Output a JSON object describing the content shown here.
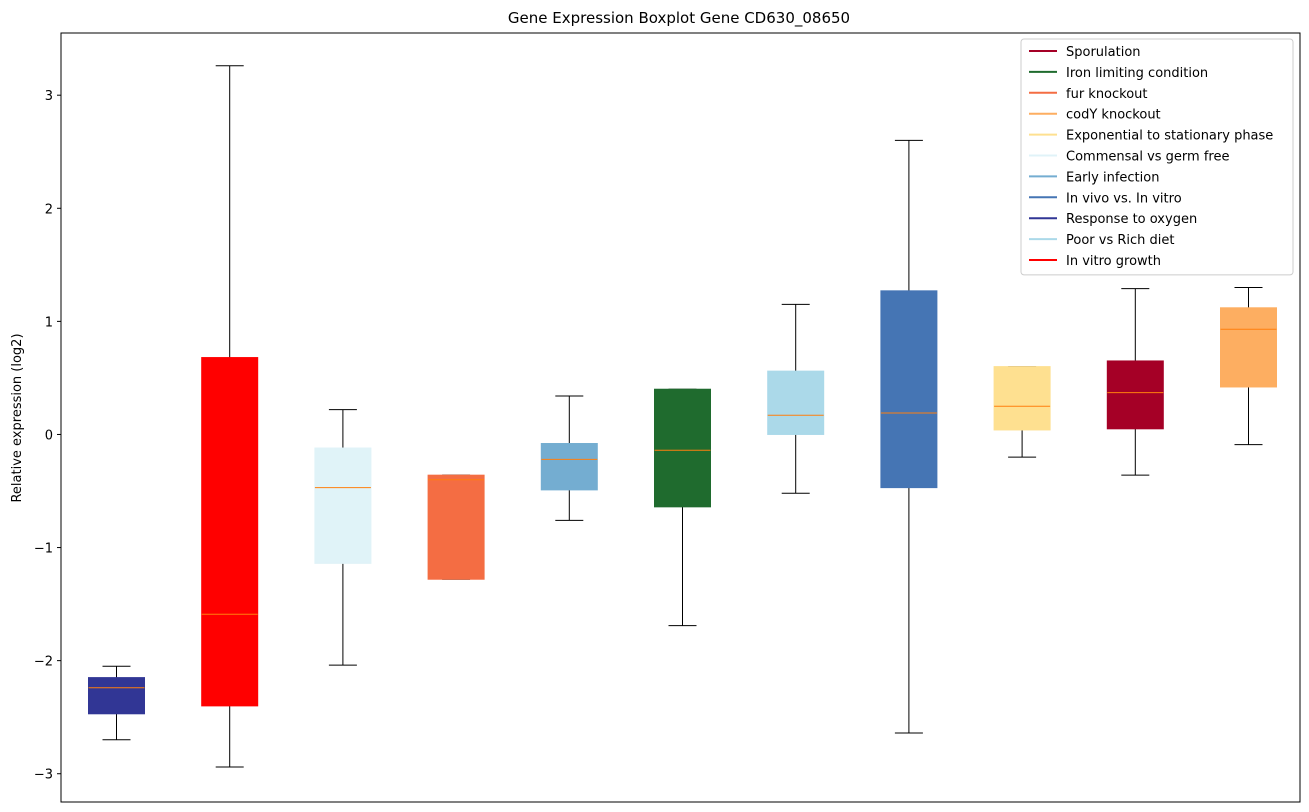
{
  "chart_data": {
    "type": "boxplot",
    "title": "Gene Expression Boxplot Gene CD630_08650",
    "xlabel": "",
    "ylabel": "Relative expression (log2)",
    "ylim": [
      -3.25,
      3.55
    ],
    "yticks": [
      3,
      2,
      1,
      0,
      -1,
      -2,
      -3
    ],
    "ytick_labels": [
      "3",
      "2",
      "1",
      "0",
      "−1",
      "−2",
      "−3"
    ],
    "median_color": "#ff7f0e",
    "boxes": [
      {
        "condition": "Response to oxygen",
        "color": "#313695",
        "whisker_low": -2.7,
        "q1": -2.47,
        "median": -2.24,
        "q3": -2.15,
        "whisker_high": -2.05
      },
      {
        "condition": "In vitro growth",
        "color": "#ff0000",
        "whisker_low": -2.94,
        "q1": -2.4,
        "median": -1.59,
        "q3": 0.68,
        "whisker_high": 3.26
      },
      {
        "condition": "Commensal vs germ free",
        "color": "#e0f3f8",
        "whisker_low": -2.04,
        "q1": -1.14,
        "median": -0.47,
        "q3": -0.12,
        "whisker_high": 0.22
      },
      {
        "condition": "fur knockout",
        "color": "#f46d43",
        "whisker_low": -1.28,
        "q1": -1.28,
        "median": -0.4,
        "q3": -0.36,
        "whisker_high": -0.36
      },
      {
        "condition": "Early infection",
        "color": "#74add1",
        "whisker_low": -0.76,
        "q1": -0.49,
        "median": -0.22,
        "q3": -0.08,
        "whisker_high": 0.34
      },
      {
        "condition": "Iron limiting condition",
        "color": "#1f6b2e",
        "whisker_low": -1.69,
        "q1": -0.64,
        "median": -0.14,
        "q3": 0.4,
        "whisker_high": 0.4
      },
      {
        "condition": "Poor vs Rich diet",
        "color": "#abd9e9",
        "whisker_low": -0.52,
        "q1": 0.0,
        "median": 0.17,
        "q3": 0.56,
        "whisker_high": 1.15
      },
      {
        "condition": "In vivo vs. In vitro",
        "color": "#4575b4",
        "whisker_low": -2.64,
        "q1": -0.47,
        "median": 0.19,
        "q3": 1.27,
        "whisker_high": 2.6
      },
      {
        "condition": "Exponential to stationary phase",
        "color": "#fee090",
        "whisker_low": -0.2,
        "q1": 0.04,
        "median": 0.25,
        "q3": 0.6,
        "whisker_high": 0.6
      },
      {
        "condition": "Sporulation",
        "color": "#a50026",
        "whisker_low": -0.36,
        "q1": 0.05,
        "median": 0.37,
        "q3": 0.65,
        "whisker_high": 1.29
      },
      {
        "condition": "codY knockout",
        "color": "#fdae61",
        "whisker_low": -0.09,
        "q1": 0.42,
        "median": 0.93,
        "q3": 1.12,
        "whisker_high": 1.3
      }
    ],
    "legend": {
      "placement": "top-right",
      "entries": [
        {
          "label": "Sporulation",
          "color": "#a50026"
        },
        {
          "label": "Iron limiting condition",
          "color": "#1f6b2e"
        },
        {
          "label": "fur knockout",
          "color": "#f46d43"
        },
        {
          "label": "codY knockout",
          "color": "#fdae61"
        },
        {
          "label": "Exponential to stationary phase",
          "color": "#fee090"
        },
        {
          "label": "Commensal vs germ free",
          "color": "#e0f3f8"
        },
        {
          "label": "Early infection",
          "color": "#74add1"
        },
        {
          "label": "In vivo vs. In vitro",
          "color": "#4575b4"
        },
        {
          "label": "Response to oxygen",
          "color": "#313695"
        },
        {
          "label": "Poor vs Rich diet",
          "color": "#abd9e9"
        },
        {
          "label": "In vitro growth",
          "color": "#ff0000"
        }
      ]
    }
  }
}
